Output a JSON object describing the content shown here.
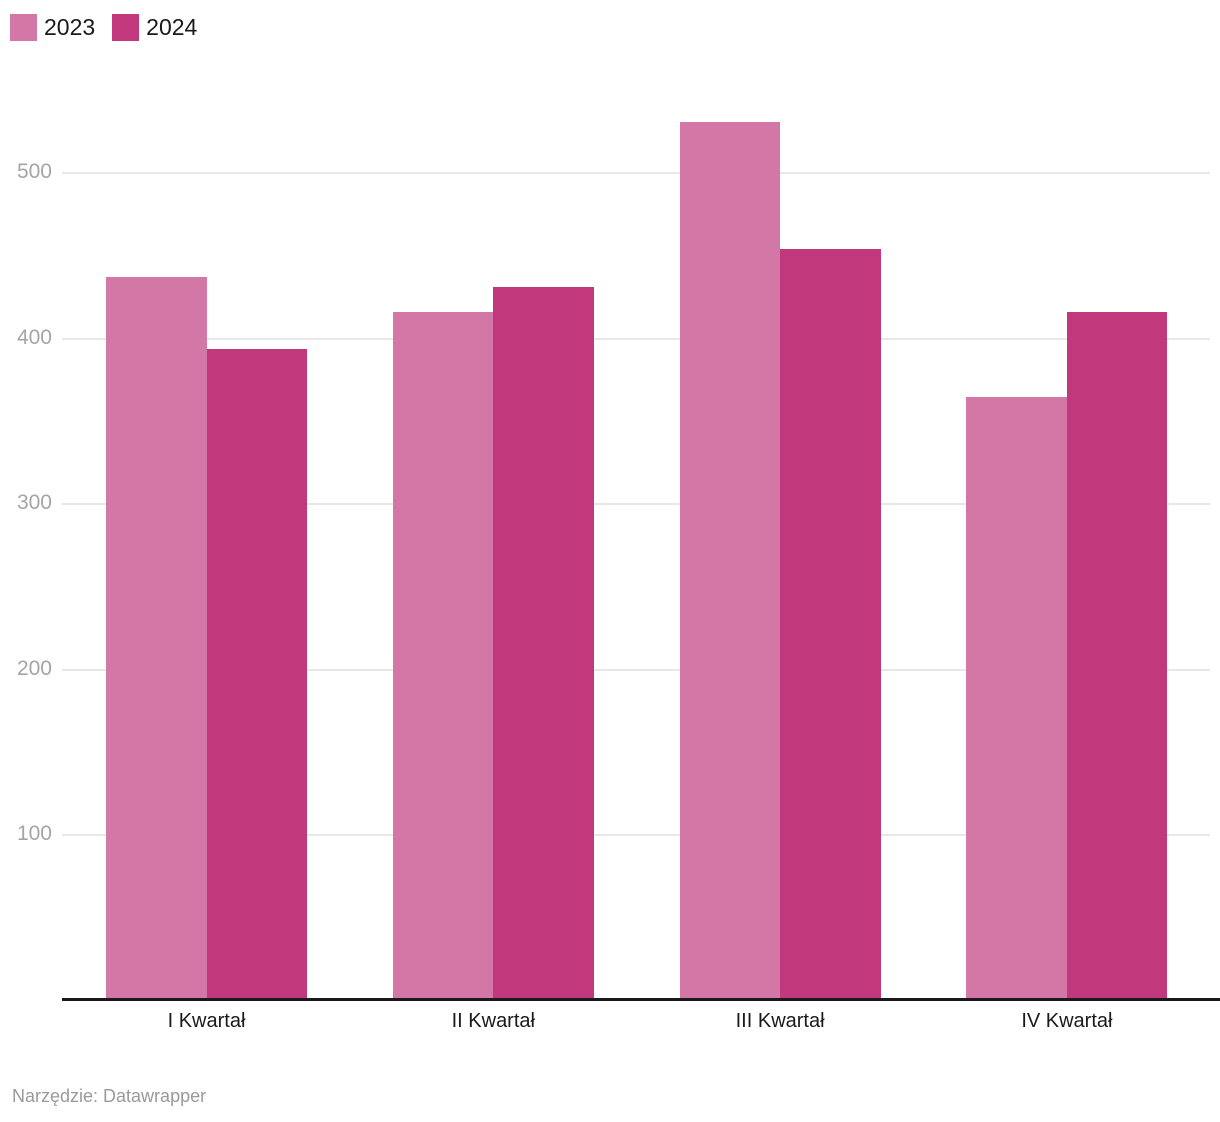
{
  "chart_data": {
    "type": "bar",
    "title": "",
    "xlabel": "",
    "ylabel": "",
    "categories": [
      "I Kwartał",
      "II Kwartał",
      "III Kwartał",
      "IV Kwartał"
    ],
    "series": [
      {
        "name": "2023",
        "color": "#d377a6",
        "values": [
          437,
          416,
          531,
          365
        ]
      },
      {
        "name": "2024",
        "color": "#c1397c",
        "values": [
          394,
          431,
          454,
          416
        ]
      }
    ],
    "ylim": [
      0,
      540
    ],
    "y_ticks": [
      100,
      200,
      300,
      400,
      500
    ],
    "grid": true,
    "legend_position": "top-left",
    "axis_color": "#1a1a1d",
    "gridline_color": "#e7e7e7",
    "tick_label_color": "#a5a5a5"
  },
  "footer": {
    "source": "Narzędzie: Datawrapper"
  }
}
